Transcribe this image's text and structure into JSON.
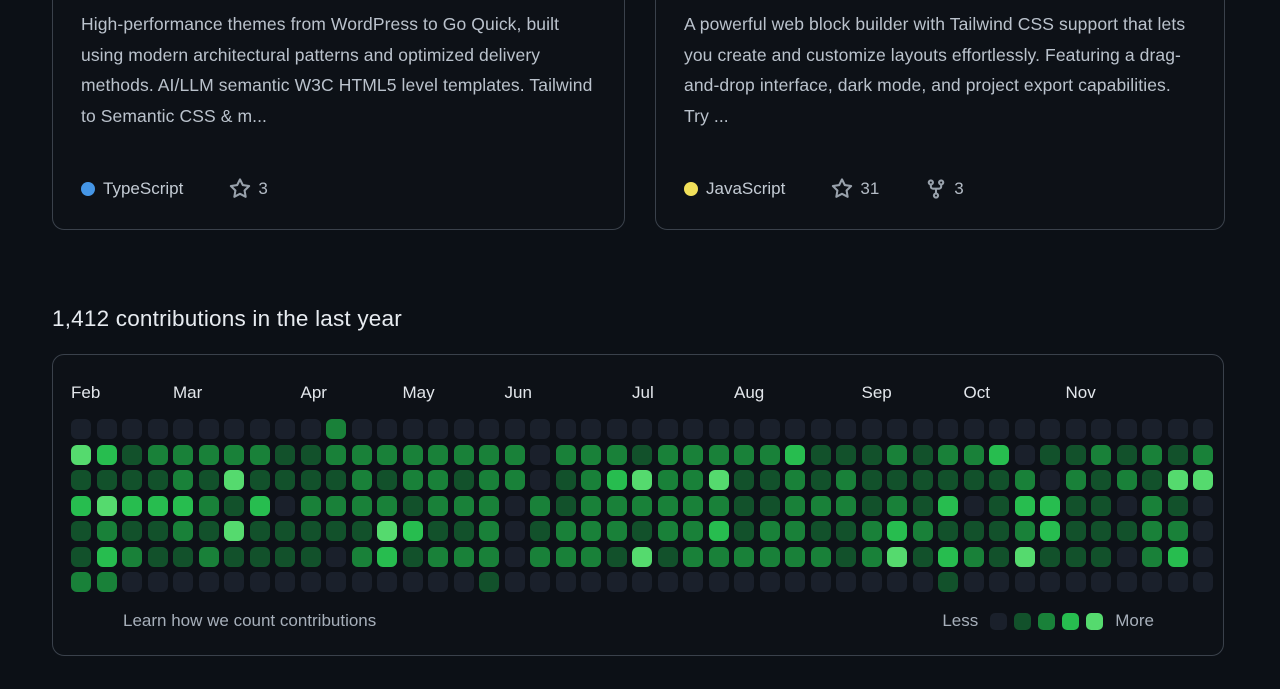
{
  "repo_cards": [
    {
      "description": "High-performance themes from WordPress to Go Quick, built using modern architectural patterns and optimized delivery methods. AI/LLM semantic W3C HTML5 level templates. Tailwind to Semantic CSS & m...",
      "language": "TypeScript",
      "language_color": "#4596e6",
      "stars": "3"
    },
    {
      "description": "A powerful web block builder with Tailwind CSS support that lets you create and customize layouts effortlessly. Featuring a drag-and-drop interface, dark mode, and project export capabilities. Try ...",
      "language": "JavaScript",
      "language_color": "#f1e05a",
      "stars": "31",
      "forks": "3"
    }
  ],
  "contributions": {
    "heading": "1,412 contributions in the last year",
    "footer": {
      "learn_label": "Learn how we count contributions",
      "less_label": "Less",
      "more_label": "More"
    }
  },
  "chart_data": {
    "type": "heatmap",
    "title": "1,412 contributions in the last year",
    "weeks": 45,
    "days_per_week": 7,
    "months": [
      {
        "label": "Feb",
        "col": 0
      },
      {
        "label": "Mar",
        "col": 4
      },
      {
        "label": "Apr",
        "col": 9
      },
      {
        "label": "May",
        "col": 13
      },
      {
        "label": "Jun",
        "col": 17
      },
      {
        "label": "Jul",
        "col": 22
      },
      {
        "label": "Aug",
        "col": 26
      },
      {
        "label": "Sep",
        "col": 31
      },
      {
        "label": "Oct",
        "col": 35
      },
      {
        "label": "Nov",
        "col": 39
      }
    ],
    "level_colors": [
      "#1a202b",
      "#12512b",
      "#198139",
      "#27bd4f",
      "#55da6e"
    ],
    "grid_levels": [
      [
        0,
        0,
        0,
        0,
        0,
        0,
        0,
        0,
        0,
        0,
        2,
        0,
        0,
        0,
        0,
        0,
        0,
        0,
        0,
        0,
        0,
        0,
        0,
        0,
        0,
        0,
        0,
        0,
        0,
        0,
        0,
        0,
        0,
        0,
        0,
        0,
        0,
        0,
        0,
        0,
        0,
        0,
        0,
        0,
        0
      ],
      [
        4,
        3,
        1,
        2,
        2,
        2,
        2,
        2,
        1,
        1,
        2,
        2,
        2,
        2,
        2,
        2,
        2,
        2,
        0,
        2,
        2,
        2,
        1,
        2,
        2,
        2,
        2,
        2,
        3,
        1,
        1,
        1,
        2,
        1,
        2,
        2,
        3,
        0,
        1,
        1,
        2,
        1,
        2,
        1,
        2
      ],
      [
        1,
        1,
        1,
        1,
        2,
        1,
        4,
        1,
        1,
        1,
        1,
        2,
        1,
        2,
        2,
        1,
        2,
        2,
        0,
        1,
        2,
        3,
        4,
        2,
        2,
        4,
        1,
        1,
        2,
        1,
        2,
        1,
        1,
        1,
        1,
        1,
        1,
        2,
        0,
        2,
        1,
        2,
        1,
        4,
        4
      ],
      [
        3,
        4,
        3,
        3,
        3,
        2,
        1,
        3,
        0,
        2,
        2,
        2,
        2,
        1,
        2,
        2,
        2,
        0,
        2,
        1,
        2,
        2,
        2,
        2,
        2,
        2,
        1,
        1,
        2,
        2,
        2,
        1,
        2,
        1,
        3,
        0,
        1,
        3,
        3,
        1,
        1,
        0,
        2,
        1,
        0
      ],
      [
        1,
        2,
        1,
        1,
        2,
        1,
        4,
        1,
        1,
        1,
        1,
        1,
        4,
        3,
        1,
        1,
        2,
        0,
        1,
        2,
        2,
        2,
        1,
        2,
        2,
        3,
        1,
        2,
        2,
        1,
        1,
        2,
        3,
        2,
        1,
        1,
        1,
        2,
        3,
        1,
        1,
        1,
        2,
        2,
        0
      ],
      [
        1,
        3,
        2,
        1,
        1,
        2,
        1,
        1,
        1,
        1,
        0,
        2,
        3,
        1,
        2,
        2,
        2,
        0,
        2,
        2,
        2,
        1,
        4,
        1,
        2,
        2,
        2,
        2,
        2,
        2,
        1,
        2,
        4,
        1,
        3,
        2,
        1,
        4,
        1,
        1,
        1,
        0,
        2,
        3,
        0
      ],
      [
        2,
        2,
        0,
        0,
        0,
        0,
        0,
        0,
        0,
        0,
        0,
        0,
        0,
        0,
        0,
        0,
        1,
        0,
        0,
        0,
        0,
        0,
        0,
        0,
        0,
        0,
        0,
        0,
        0,
        0,
        0,
        0,
        0,
        0,
        1,
        0,
        0,
        0,
        0,
        0,
        0,
        0,
        0,
        0,
        0
      ]
    ]
  }
}
